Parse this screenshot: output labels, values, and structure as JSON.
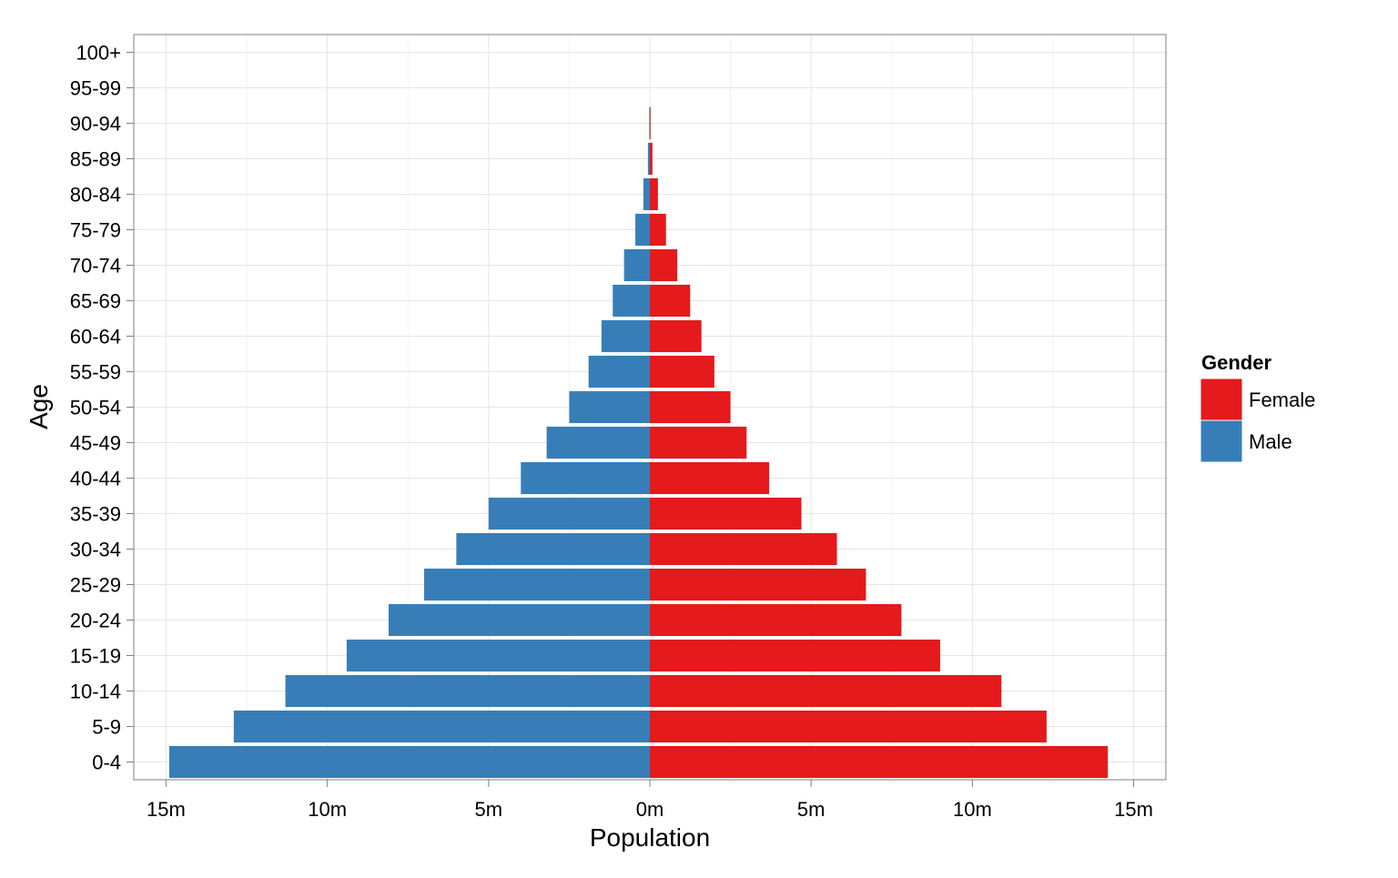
{
  "chart_data": {
    "type": "bar",
    "orientation": "horizontal",
    "xlabel": "Population",
    "ylabel": "Age",
    "xlim": [
      -16000000,
      16000000
    ],
    "xticks": [
      -15000000,
      -10000000,
      -5000000,
      0,
      5000000,
      10000000,
      15000000
    ],
    "xtick_labels": [
      "15m",
      "10m",
      "5m",
      "0m",
      "5m",
      "10m",
      "15m"
    ],
    "categories": [
      "0-4",
      "5-9",
      "10-14",
      "15-19",
      "20-24",
      "25-29",
      "30-34",
      "35-39",
      "40-44",
      "45-49",
      "50-54",
      "55-59",
      "60-64",
      "65-69",
      "70-74",
      "75-79",
      "80-84",
      "85-89",
      "90-94",
      "95-99",
      "100+"
    ],
    "series": [
      {
        "name": "Female",
        "color": "#e41a1c",
        "values": [
          14200000,
          12300000,
          10900000,
          9000000,
          7800000,
          6700000,
          5800000,
          4700000,
          3700000,
          3000000,
          2500000,
          2000000,
          1600000,
          1250000,
          850000,
          500000,
          250000,
          80000,
          20000,
          0,
          0
        ]
      },
      {
        "name": "Male",
        "color": "#377eb8",
        "values": [
          -14900000,
          -12900000,
          -11300000,
          -9400000,
          -8100000,
          -7000000,
          -6000000,
          -5000000,
          -4000000,
          -3200000,
          -2500000,
          -1900000,
          -1500000,
          -1150000,
          -800000,
          -450000,
          -200000,
          -60000,
          -20000,
          0,
          0
        ]
      }
    ],
    "grid": true,
    "legend": {
      "title": "Gender",
      "position": "right",
      "entries": [
        {
          "label": "Female",
          "color": "#e41a1c"
        },
        {
          "label": "Male",
          "color": "#377eb8"
        }
      ]
    }
  }
}
